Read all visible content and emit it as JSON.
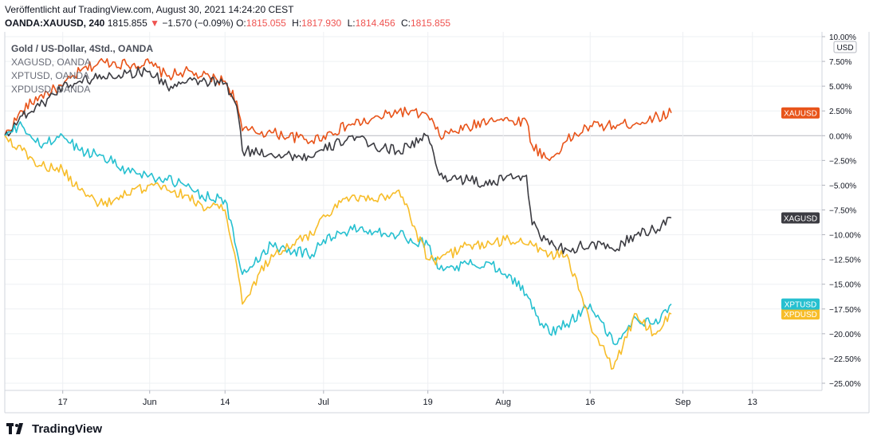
{
  "header": {
    "published": "Veröffentlicht auf TradingView.com, August 30, 2021 14:24:20 CEST",
    "symbol": "OANDA:XAUUSD, 240",
    "last": "1815.855",
    "arrow": "▼",
    "change": "−1.570 (−0.09%)",
    "o_label": "O:",
    "o": "1815.055",
    "h_label": "H:",
    "h": "1817.930",
    "l_label": "L:",
    "l": "1814.456",
    "c_label": "C:",
    "c": "1815.855"
  },
  "legend": {
    "title": "Gold  / US-Dollar, 4Std., OANDA",
    "rows": [
      "XAGUSD, OANDA",
      "XPTUSD, OANDA",
      "XPDUSD, OANDA"
    ]
  },
  "footer": {
    "brand": "TradingView",
    "logo_icon": "tradingview-logo-icon"
  },
  "colors": {
    "XAUUSD": "#e8541a",
    "XAGUSD": "#3c3c42",
    "XPTUSD": "#26c0d0",
    "XPDUSD": "#f7bd2a"
  },
  "chart_data": {
    "type": "line",
    "unit_label": "USD",
    "ylim": [
      -25,
      10
    ],
    "yticks": [
      "10.00%",
      "7.50%",
      "5.00%",
      "2.50%",
      "0.00%",
      "−2.50%",
      "−5.00%",
      "−7.50%",
      "−10.00%",
      "−12.50%",
      "−15.00%",
      "−17.50%",
      "−20.00%",
      "−22.50%",
      "−25.00%"
    ],
    "ytick_values": [
      10,
      7.5,
      5,
      2.5,
      0,
      -2.5,
      -5,
      -7.5,
      -10,
      -12.5,
      -15,
      -17.5,
      -20,
      -22.5,
      -25
    ],
    "xticks": [
      "17",
      "Jun",
      "14",
      "Jul",
      "19",
      "Aug",
      "16",
      "Sep",
      "13"
    ],
    "xtick_dates": [
      "2021-05-17",
      "2021-06-01",
      "2021-06-14",
      "2021-07-01",
      "2021-07-19",
      "2021-08-01",
      "2021-08-16",
      "2021-09-01",
      "2021-09-13"
    ],
    "xlim": [
      "2021-05-07",
      "2021-09-25"
    ],
    "grid": true,
    "series": [
      {
        "name": "XAUUSD",
        "points": [
          [
            "2021-05-07",
            0
          ],
          [
            "2021-05-10",
            2.5
          ],
          [
            "2021-05-13",
            4
          ],
          [
            "2021-05-17",
            5
          ],
          [
            "2021-05-20",
            6.5
          ],
          [
            "2021-05-24",
            7.5
          ],
          [
            "2021-05-28",
            7.2
          ],
          [
            "2021-06-01",
            7.3
          ],
          [
            "2021-06-04",
            6
          ],
          [
            "2021-06-07",
            6.5
          ],
          [
            "2021-06-10",
            6
          ],
          [
            "2021-06-14",
            5.5
          ],
          [
            "2021-06-16",
            3.5
          ],
          [
            "2021-06-17",
            0.5
          ],
          [
            "2021-06-22",
            0.3
          ],
          [
            "2021-06-29",
            -0.5
          ],
          [
            "2021-07-01",
            0
          ],
          [
            "2021-07-06",
            1.2
          ],
          [
            "2021-07-09",
            1.5
          ],
          [
            "2021-07-14",
            2.5
          ],
          [
            "2021-07-19",
            2
          ],
          [
            "2021-07-21",
            0
          ],
          [
            "2021-07-26",
            0.8
          ],
          [
            "2021-07-30",
            1.8
          ],
          [
            "2021-08-02",
            1.5
          ],
          [
            "2021-08-05",
            1.5
          ],
          [
            "2021-08-06",
            -1
          ],
          [
            "2021-08-09",
            -2.5
          ],
          [
            "2021-08-12",
            -0.5
          ],
          [
            "2021-08-16",
            1
          ],
          [
            "2021-08-20",
            1
          ],
          [
            "2021-08-24",
            1.3
          ],
          [
            "2021-08-27",
            1.8
          ],
          [
            "2021-08-30",
            2.3
          ]
        ]
      },
      {
        "name": "XAGUSD",
        "points": [
          [
            "2021-05-07",
            0
          ],
          [
            "2021-05-10",
            2
          ],
          [
            "2021-05-13",
            3
          ],
          [
            "2021-05-17",
            5
          ],
          [
            "2021-05-20",
            5.5
          ],
          [
            "2021-05-24",
            6
          ],
          [
            "2021-05-28",
            6.3
          ],
          [
            "2021-06-01",
            6.5
          ],
          [
            "2021-06-04",
            5
          ],
          [
            "2021-06-07",
            5.3
          ],
          [
            "2021-06-10",
            5.5
          ],
          [
            "2021-06-14",
            5.3
          ],
          [
            "2021-06-16",
            3
          ],
          [
            "2021-06-17",
            -1.5
          ],
          [
            "2021-06-22",
            -1.8
          ],
          [
            "2021-06-29",
            -2.2
          ],
          [
            "2021-07-01",
            -1.5
          ],
          [
            "2021-07-06",
            0
          ],
          [
            "2021-07-09",
            -1
          ],
          [
            "2021-07-14",
            -1.5
          ],
          [
            "2021-07-19",
            0
          ],
          [
            "2021-07-21",
            -4
          ],
          [
            "2021-07-26",
            -4.5
          ],
          [
            "2021-07-30",
            -5
          ],
          [
            "2021-08-02",
            -4
          ],
          [
            "2021-08-05",
            -4
          ],
          [
            "2021-08-06",
            -9
          ],
          [
            "2021-08-09",
            -11
          ],
          [
            "2021-08-12",
            -11.5
          ],
          [
            "2021-08-16",
            -11
          ],
          [
            "2021-08-20",
            -11.5
          ],
          [
            "2021-08-24",
            -10
          ],
          [
            "2021-08-27",
            -9.5
          ],
          [
            "2021-08-30",
            -8.3
          ]
        ]
      },
      {
        "name": "XPTUSD",
        "points": [
          [
            "2021-05-07",
            0
          ],
          [
            "2021-05-10",
            1
          ],
          [
            "2021-05-13",
            -1
          ],
          [
            "2021-05-17",
            0
          ],
          [
            "2021-05-20",
            -1.5
          ],
          [
            "2021-05-24",
            -2
          ],
          [
            "2021-05-28",
            -3.5
          ],
          [
            "2021-06-01",
            -4
          ],
          [
            "2021-06-04",
            -4.5
          ],
          [
            "2021-06-07",
            -5
          ],
          [
            "2021-06-10",
            -6
          ],
          [
            "2021-06-14",
            -6.5
          ],
          [
            "2021-06-16",
            -11.5
          ],
          [
            "2021-06-17",
            -14
          ],
          [
            "2021-06-22",
            -11
          ],
          [
            "2021-06-29",
            -12
          ],
          [
            "2021-07-01",
            -10.5
          ],
          [
            "2021-07-06",
            -9.5
          ],
          [
            "2021-07-09",
            -9.5
          ],
          [
            "2021-07-14",
            -10
          ],
          [
            "2021-07-19",
            -11
          ],
          [
            "2021-07-21",
            -13.5
          ],
          [
            "2021-07-26",
            -13
          ],
          [
            "2021-07-30",
            -13
          ],
          [
            "2021-08-02",
            -14
          ],
          [
            "2021-08-05",
            -16
          ],
          [
            "2021-08-06",
            -17.5
          ],
          [
            "2021-08-09",
            -20
          ],
          [
            "2021-08-12",
            -19
          ],
          [
            "2021-08-16",
            -17
          ],
          [
            "2021-08-20",
            -21
          ],
          [
            "2021-08-24",
            -18.5
          ],
          [
            "2021-08-27",
            -19
          ],
          [
            "2021-08-30",
            -17
          ]
        ]
      },
      {
        "name": "XPDUSD",
        "points": [
          [
            "2021-05-07",
            0
          ],
          [
            "2021-05-10",
            -1.5
          ],
          [
            "2021-05-13",
            -3
          ],
          [
            "2021-05-17",
            -3.5
          ],
          [
            "2021-05-20",
            -5.5
          ],
          [
            "2021-05-24",
            -7
          ],
          [
            "2021-05-28",
            -6
          ],
          [
            "2021-06-01",
            -5
          ],
          [
            "2021-06-04",
            -5.5
          ],
          [
            "2021-06-07",
            -6
          ],
          [
            "2021-06-10",
            -7
          ],
          [
            "2021-06-14",
            -7.5
          ],
          [
            "2021-06-16",
            -13
          ],
          [
            "2021-06-17",
            -17
          ],
          [
            "2021-06-22",
            -12
          ],
          [
            "2021-06-29",
            -10
          ],
          [
            "2021-07-01",
            -8
          ],
          [
            "2021-07-06",
            -6
          ],
          [
            "2021-07-09",
            -6.5
          ],
          [
            "2021-07-14",
            -5.5
          ],
          [
            "2021-07-19",
            -12.5
          ],
          [
            "2021-07-21",
            -12.5
          ],
          [
            "2021-07-26",
            -11
          ],
          [
            "2021-07-30",
            -11
          ],
          [
            "2021-08-02",
            -10.5
          ],
          [
            "2021-08-05",
            -11
          ],
          [
            "2021-08-06",
            -11
          ],
          [
            "2021-08-09",
            -12
          ],
          [
            "2021-08-12",
            -12
          ],
          [
            "2021-08-16",
            -19
          ],
          [
            "2021-08-20",
            -23.5
          ],
          [
            "2021-08-24",
            -18
          ],
          [
            "2021-08-27",
            -20
          ],
          [
            "2021-08-30",
            -18
          ]
        ]
      }
    ]
  }
}
